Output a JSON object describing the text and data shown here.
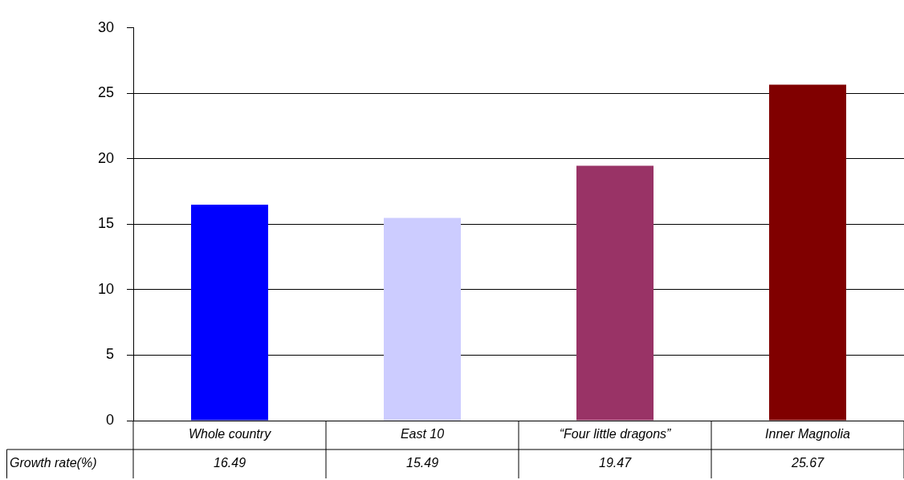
{
  "chart_data": {
    "type": "bar",
    "categories": [
      "Whole country",
      "East 10",
      "“Four little dragons”",
      "Inner Magnolia"
    ],
    "series": [
      {
        "name": "Growth rate(%)",
        "colors": [
          "#0000ff",
          "#ccccff",
          "#993366",
          "#800000"
        ],
        "values": [
          16.49,
          15.49,
          19.47,
          25.67
        ]
      }
    ],
    "ylim": [
      0,
      30
    ],
    "yticks": [
      0,
      5,
      10,
      15,
      20,
      25,
      30
    ],
    "grid": "y",
    "legend": "bottom left",
    "data_labels": true
  }
}
